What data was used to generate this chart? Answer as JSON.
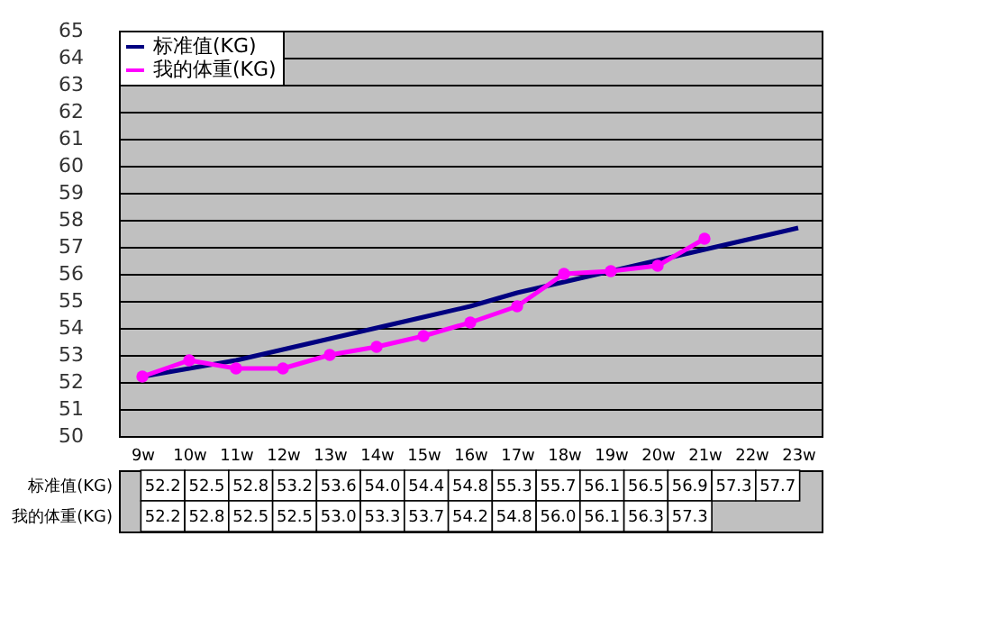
{
  "chart_data": {
    "type": "line",
    "categories": [
      "9w",
      "10w",
      "11w",
      "12w",
      "13w",
      "14w",
      "15w",
      "16w",
      "17w",
      "18w",
      "19w",
      "20w",
      "21w",
      "22w",
      "23w"
    ],
    "series": [
      {
        "name": "标准值(KG)",
        "color": "#000080",
        "marker": "none",
        "values": [
          52.2,
          52.5,
          52.8,
          53.2,
          53.6,
          54.0,
          54.4,
          54.8,
          55.3,
          55.7,
          56.1,
          56.5,
          56.9,
          57.3,
          57.7
        ],
        "value_labels": [
          "52.2",
          "52.5",
          "52.8",
          "53.2",
          "53.6",
          "54.0",
          "54.4",
          "54.8",
          "55.3",
          "55.7",
          "56.1",
          "56.5",
          "56.9",
          "57.3",
          "57.7"
        ]
      },
      {
        "name": "我的体重(KG)",
        "color": "#ff00ff",
        "marker": "circle",
        "values": [
          52.2,
          52.8,
          52.5,
          52.5,
          53.0,
          53.3,
          53.7,
          54.2,
          54.8,
          56.0,
          56.1,
          56.3,
          57.3,
          null,
          null
        ],
        "value_labels": [
          "52.2",
          "52.8",
          "52.5",
          "52.5",
          "53.0",
          "53.3",
          "53.7",
          "54.2",
          "54.8",
          "56.0",
          "56.1",
          "56.3",
          "57.3",
          null,
          null
        ]
      }
    ],
    "ylim": [
      50,
      65
    ],
    "yticks": [
      50,
      51,
      52,
      53,
      54,
      55,
      56,
      57,
      58,
      59,
      60,
      61,
      62,
      63,
      64,
      65
    ],
    "grid": "y",
    "legend": "top left"
  }
}
